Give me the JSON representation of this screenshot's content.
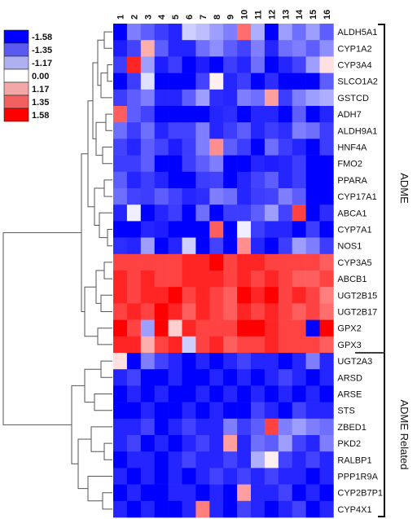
{
  "chart_data": {
    "type": "heatmap",
    "title": "",
    "columns": [
      "1",
      "2",
      "3",
      "4",
      "5",
      "6",
      "7",
      "8",
      "9",
      "10",
      "11",
      "12",
      "13",
      "14",
      "15",
      "16"
    ],
    "rows": [
      "ALDH5A1",
      "CYP1A2",
      "CYP3A4",
      "SLCO1A2",
      "GSTCD",
      "ADH7",
      "ALDH9A1",
      "HNF4A",
      "FMO2",
      "PPARA",
      "CYP17A1",
      "ABCA1",
      "CYP7A1",
      "NOS1",
      "CYP3A5",
      "ABCB1",
      "UGT2B15",
      "UGT2B17",
      "GPX2",
      "GPX3",
      "UGT2A3",
      "ARSD",
      "ARSE",
      "STS",
      "ZBED1",
      "PKD2",
      "RALBP1",
      "PPP1R9A",
      "CYP2B7P1",
      "CYP4X1"
    ],
    "values": [
      [
        -1.58,
        -0.8,
        -1.0,
        -1.2,
        -1.35,
        -0.3,
        -0.4,
        -0.6,
        -0.8,
        0.9,
        -0.5,
        -1.58,
        -0.6,
        -0.9,
        -0.6,
        -1.0
      ],
      [
        -1.4,
        -1.17,
        0.5,
        -1.0,
        -1.35,
        -1.35,
        -0.9,
        -0.7,
        -1.0,
        -1.17,
        -0.8,
        -1.35,
        -0.9,
        -0.8,
        -1.0,
        -0.7
      ],
      [
        -1.2,
        1.35,
        -0.6,
        -1.4,
        -1.2,
        -1.58,
        -1.4,
        -1.58,
        -1.2,
        -1.35,
        -0.9,
        -1.58,
        -1.35,
        -1.17,
        -0.6,
        0.2
      ],
      [
        -1.58,
        -1.2,
        -0.2,
        -1.58,
        -1.58,
        -1.58,
        -1.17,
        0.1,
        -1.35,
        -1.2,
        -1.58,
        -1.3,
        -1.58,
        -1.58,
        -1.58,
        -1.0
      ],
      [
        -1.2,
        -1.0,
        -0.8,
        -1.35,
        -1.35,
        -1.0,
        -0.6,
        -1.3,
        -1.35,
        -0.8,
        -0.9,
        0.6,
        -1.2,
        -0.8,
        -0.6,
        -0.5
      ],
      [
        1.0,
        -1.0,
        -1.17,
        -1.58,
        -1.58,
        -1.58,
        -1.58,
        -1.35,
        -1.3,
        -1.58,
        -1.35,
        -1.35,
        -1.58,
        -1.0,
        -1.58,
        -1.35
      ],
      [
        -0.9,
        -1.2,
        -0.9,
        -1.35,
        -1.17,
        -1.17,
        -0.8,
        -1.35,
        -1.2,
        -1.0,
        -1.35,
        -1.2,
        -1.3,
        -0.8,
        -0.9,
        -1.2
      ],
      [
        -1.17,
        -1.35,
        -1.0,
        -1.17,
        -1.4,
        -1.2,
        -0.8,
        0.7,
        -1.0,
        -1.2,
        -1.58,
        -0.9,
        -1.2,
        -1.35,
        -1.58,
        -1.2
      ],
      [
        -1.2,
        -1.2,
        -1.0,
        -1.58,
        -1.58,
        -1.2,
        -1.0,
        -0.8,
        -1.58,
        -1.58,
        -1.35,
        -1.4,
        -1.35,
        -1.2,
        -1.58,
        -1.58
      ],
      [
        -1.0,
        -1.35,
        -1.2,
        -1.35,
        -1.58,
        -1.58,
        -1.2,
        -1.17,
        -1.58,
        -1.35,
        -1.17,
        -1.0,
        -1.35,
        -1.2,
        -1.58,
        -1.58
      ],
      [
        -0.9,
        -1.17,
        -1.2,
        -1.0,
        -1.17,
        -1.35,
        -1.3,
        -0.8,
        -0.9,
        -1.35,
        -1.2,
        -1.17,
        -0.8,
        -1.0,
        -1.58,
        -1.58
      ],
      [
        -1.35,
        -0.1,
        -1.58,
        -1.35,
        -1.2,
        -1.58,
        -0.9,
        -1.58,
        -1.2,
        -1.2,
        -1.0,
        -0.6,
        -1.17,
        1.17,
        -1.58,
        -1.3
      ],
      [
        -1.58,
        -1.58,
        -1.35,
        -1.4,
        -1.58,
        -1.58,
        -1.58,
        1.0,
        -1.58,
        -0.1,
        -1.2,
        -1.35,
        -1.35,
        -1.58,
        -1.2,
        -1.58
      ],
      [
        -1.3,
        -1.35,
        -0.6,
        -1.58,
        -1.35,
        -0.3,
        -1.58,
        -1.17,
        -1.58,
        0.7,
        -1.35,
        -1.58,
        -1.2,
        -0.6,
        -0.8,
        -1.2
      ],
      [
        1.17,
        1.17,
        1.17,
        1.17,
        1.17,
        1.35,
        1.35,
        1.58,
        1.17,
        1.35,
        1.35,
        1.17,
        1.17,
        1.17,
        1.17,
        1.0
      ],
      [
        1.35,
        1.17,
        1.35,
        1.17,
        1.17,
        1.35,
        1.35,
        1.35,
        1.17,
        1.35,
        1.17,
        1.35,
        1.17,
        1.0,
        1.0,
        1.17
      ],
      [
        1.35,
        1.17,
        1.35,
        1.35,
        1.58,
        1.17,
        1.35,
        1.17,
        1.0,
        1.58,
        1.35,
        1.58,
        1.17,
        1.35,
        1.17,
        0.8
      ],
      [
        1.17,
        1.35,
        1.17,
        1.58,
        1.35,
        1.0,
        1.35,
        1.17,
        1.0,
        1.35,
        1.17,
        1.35,
        1.17,
        1.0,
        1.17,
        0.9
      ],
      [
        1.58,
        1.17,
        -0.6,
        1.58,
        0.3,
        1.35,
        1.17,
        1.17,
        1.17,
        1.58,
        1.58,
        1.35,
        1.17,
        1.17,
        -1.58,
        1.58
      ],
      [
        1.35,
        1.35,
        0.5,
        1.17,
        1.35,
        -0.3,
        1.17,
        1.35,
        1.0,
        1.17,
        1.17,
        1.35,
        1.17,
        1.17,
        1.17,
        1.0
      ],
      [
        0.2,
        -1.58,
        -0.8,
        -1.17,
        -1.35,
        -1.58,
        -1.35,
        -1.58,
        -1.35,
        -1.17,
        -1.35,
        -1.35,
        -1.58,
        -1.35,
        -0.8,
        -1.35
      ],
      [
        -1.35,
        -1.17,
        -1.58,
        -1.58,
        -1.35,
        -1.58,
        -1.58,
        -1.35,
        -1.58,
        -1.35,
        -1.58,
        -1.35,
        -1.17,
        -1.35,
        -1.58,
        -1.35
      ],
      [
        -1.58,
        -1.35,
        -1.58,
        -1.35,
        -1.58,
        -1.58,
        -1.35,
        -1.58,
        -1.35,
        -1.58,
        -1.35,
        -1.58,
        -1.35,
        -1.58,
        -1.35,
        -1.58
      ],
      [
        -1.58,
        -1.58,
        -1.35,
        -1.58,
        -1.58,
        -1.35,
        -1.58,
        -1.35,
        -1.58,
        -1.58,
        -1.17,
        -1.35,
        -1.58,
        -1.17,
        -1.35,
        -1.35
      ],
      [
        -1.35,
        -1.35,
        -1.17,
        -1.58,
        -1.35,
        -1.17,
        -1.35,
        -1.35,
        -0.8,
        -1.2,
        -1.0,
        1.17,
        -0.8,
        -0.6,
        -0.8,
        -0.9
      ],
      [
        -1.35,
        -1.17,
        -1.58,
        -1.35,
        -1.58,
        -1.35,
        -1.17,
        -1.35,
        0.6,
        -1.35,
        -0.9,
        -1.0,
        -0.6,
        -1.17,
        -1.35,
        -0.8
      ],
      [
        -1.58,
        -1.35,
        -1.35,
        -1.58,
        -1.35,
        -1.17,
        -1.35,
        -1.35,
        -1.17,
        -1.35,
        -0.5,
        0.1,
        -1.17,
        -1.35,
        -1.17,
        -1.35
      ],
      [
        -1.35,
        -1.58,
        -1.35,
        -1.58,
        -1.35,
        -1.58,
        -1.35,
        -1.17,
        -1.35,
        -1.17,
        -1.35,
        -1.17,
        -1.35,
        -1.35,
        -1.58,
        -1.35
      ],
      [
        -1.58,
        -1.35,
        -1.58,
        -1.58,
        -1.35,
        -1.35,
        -1.58,
        -1.35,
        -1.58,
        0.6,
        -1.35,
        -1.35,
        -1.17,
        -1.58,
        -1.35,
        -1.58
      ],
      [
        -1.35,
        -1.58,
        -1.35,
        -1.58,
        -1.58,
        -1.35,
        0.8,
        -1.35,
        -1.58,
        -1.17,
        -1.35,
        -1.58,
        -1.35,
        -1.17,
        -1.58,
        -1.35
      ]
    ],
    "color_range": [
      -1.58,
      1.58
    ],
    "colors": {
      "negative": "#0000ff",
      "neutral": "#ffffff",
      "positive": "#ff0000"
    },
    "legend": {
      "placement": "top-left",
      "entries": [
        {
          "label": "-1.58",
          "color": "#0000ff"
        },
        {
          "label": "-1.35",
          "color": "#5a5af0"
        },
        {
          "label": "-1.17",
          "color": "#aeb0f2"
        },
        {
          "label": "0.00",
          "color": "#ffffff"
        },
        {
          "label": "1.17",
          "color": "#f4a7a7"
        },
        {
          "label": "1.35",
          "color": "#f26060"
        },
        {
          "label": "1.58",
          "color": "#ff0000"
        }
      ]
    },
    "groups": [
      {
        "label": "ADME",
        "start": 0,
        "end": 19
      },
      {
        "label": "ADME Related",
        "start": 20,
        "end": 29
      }
    ],
    "dendrogram": "rows"
  }
}
